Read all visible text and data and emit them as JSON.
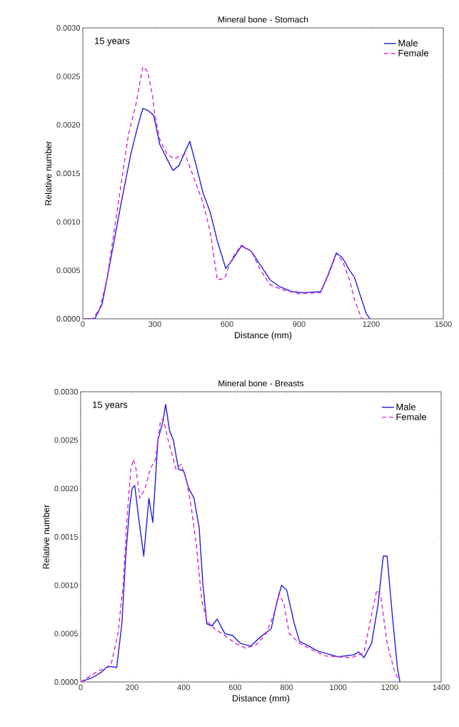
{
  "chart_data": [
    {
      "type": "line",
      "title": "Mineral bone - Stomach",
      "xlabel": "Distance (mm)",
      "ylabel": "Relative number",
      "annotations": [
        "15 years"
      ],
      "legend": "top right",
      "xlim": [
        0,
        1500
      ],
      "xticks": [
        0,
        300,
        600,
        900,
        1200,
        1500
      ],
      "ylim": [
        0,
        0.003
      ],
      "yticks": [
        {
          "value": 0,
          "label": "0.0000"
        },
        {
          "value": 0.0005,
          "label": "0.0005"
        },
        {
          "value": 0.001,
          "label": "0.0010"
        },
        {
          "value": 0.0015,
          "label": "0.0015"
        },
        {
          "value": 0.002,
          "label": "0.0020"
        },
        {
          "value": 0.0025,
          "label": "0.0025"
        },
        {
          "value": 0.003,
          "label": "0.0030"
        }
      ],
      "series": [
        {
          "name": "Male",
          "color": "#1f1fdd",
          "line_style": "solid",
          "x": [
            0,
            30,
            50,
            80,
            100,
            130,
            160,
            200,
            230,
            250,
            270,
            295,
            320,
            350,
            375,
            400,
            425,
            445,
            470,
            500,
            530,
            560,
            595,
            620,
            660,
            700,
            740,
            780,
            820,
            870,
            920,
            990,
            1020,
            1055,
            1080,
            1110,
            1130,
            1160,
            1180,
            1195
          ],
          "values": [
            0,
            0,
            0,
            0.00015,
            0.0004,
            0.0008,
            0.0012,
            0.0017,
            0.002,
            0.00217,
            0.00215,
            0.0021,
            0.0018,
            0.00165,
            0.00153,
            0.00158,
            0.00172,
            0.00183,
            0.0016,
            0.0013,
            0.0011,
            0.0008,
            0.00052,
            0.0006,
            0.00075,
            0.0007,
            0.00055,
            0.0004,
            0.00033,
            0.00028,
            0.00027,
            0.00028,
            0.00045,
            0.00068,
            0.00063,
            0.0005,
            0.00043,
            0.0002,
            5e-05,
            0
          ]
        },
        {
          "name": "Female",
          "color": "#d42ad4",
          "line_style": "dashed",
          "x": [
            0,
            40,
            70,
            100,
            130,
            160,
            190,
            220,
            250,
            270,
            290,
            300,
            320,
            350,
            380,
            405,
            425,
            440,
            470,
            500,
            530,
            560,
            590,
            620,
            660,
            700,
            740,
            780,
            830,
            900,
            990,
            1030,
            1055,
            1080,
            1110,
            1130,
            1160,
            1180
          ],
          "values": [
            0,
            0,
            0.0001,
            0.0004,
            0.0009,
            0.0014,
            0.0019,
            0.0022,
            0.0026,
            0.00255,
            0.0023,
            0.0021,
            0.00185,
            0.0017,
            0.00165,
            0.00168,
            0.0017,
            0.0016,
            0.0014,
            0.0012,
            0.0009,
            0.0004,
            0.00042,
            0.00062,
            0.00076,
            0.0007,
            0.0005,
            0.00035,
            0.0003,
            0.00026,
            0.00027,
            0.0005,
            0.00067,
            0.0006,
            0.0004,
            0.0002,
            0,
            0
          ]
        }
      ]
    },
    {
      "type": "line",
      "title": "Mineral bone - Breasts",
      "xlabel": "Distance (mm)",
      "ylabel": "Relative number",
      "annotations": [
        "15 years"
      ],
      "legend": "top right",
      "xlim": [
        0,
        1400
      ],
      "xticks": [
        0,
        200,
        400,
        600,
        800,
        1000,
        1200,
        1400
      ],
      "ylim": [
        0,
        0.003
      ],
      "yticks": [
        {
          "value": 0,
          "label": "0.0000"
        },
        {
          "value": 0.0005,
          "label": "0.0005"
        },
        {
          "value": 0.001,
          "label": "0.0010"
        },
        {
          "value": 0.0015,
          "label": "0.0015"
        },
        {
          "value": 0.002,
          "label": "0.0020"
        },
        {
          "value": 0.0025,
          "label": "0.0025"
        },
        {
          "value": 0.003,
          "label": "0.0030"
        }
      ],
      "series": [
        {
          "name": "Male",
          "color": "#1f1fdd",
          "line_style": "solid",
          "x": [
            0,
            50,
            80,
            100,
            115,
            140,
            160,
            175,
            190,
            200,
            210,
            225,
            245,
            265,
            280,
            300,
            320,
            330,
            345,
            360,
            380,
            400,
            420,
            440,
            460,
            475,
            490,
            510,
            530,
            560,
            590,
            620,
            660,
            700,
            740,
            760,
            780,
            800,
            830,
            850,
            880,
            920,
            1000,
            1060,
            1080,
            1100,
            1130,
            1155,
            1175,
            1190,
            1210,
            1230,
            1240
          ],
          "values": [
            0,
            5e-05,
            0.0001,
            0.00015,
            0.00016,
            0.00015,
            0.0006,
            0.0013,
            0.0018,
            0.002,
            0.00203,
            0.0017,
            0.0013,
            0.0019,
            0.00165,
            0.0025,
            0.0027,
            0.00287,
            0.0026,
            0.0025,
            0.0022,
            0.00218,
            0.002,
            0.0019,
            0.0016,
            0.001,
            0.0006,
            0.00058,
            0.00065,
            0.0005,
            0.00048,
            0.0004,
            0.00037,
            0.00047,
            0.00055,
            0.0008,
            0.001,
            0.00095,
            0.0006,
            0.00042,
            0.00038,
            0.00032,
            0.00026,
            0.00028,
            0.00031,
            0.00025,
            0.0004,
            0.0008,
            0.0013,
            0.0013,
            0.0007,
            0.00015,
            0
          ]
        },
        {
          "name": "Female",
          "color": "#d42ad4",
          "line_style": "dashed",
          "x": [
            0,
            60,
            100,
            120,
            145,
            165,
            180,
            195,
            205,
            215,
            230,
            250,
            270,
            290,
            310,
            320,
            340,
            370,
            390,
            410,
            430,
            450,
            470,
            490,
            520,
            560,
            600,
            640,
            680,
            720,
            750,
            770,
            790,
            810,
            850,
            900,
            950,
            1050,
            1100,
            1130,
            1150,
            1165,
            1190,
            1220,
            1240
          ],
          "values": [
            0,
            0.0001,
            0.00015,
            0.0002,
            0.0005,
            0.001,
            0.0017,
            0.0022,
            0.0023,
            0.0022,
            0.0019,
            0.002,
            0.0022,
            0.0023,
            0.0027,
            0.00272,
            0.0025,
            0.0022,
            0.00225,
            0.0021,
            0.0018,
            0.0014,
            0.00085,
            0.00063,
            0.00055,
            0.00048,
            0.0004,
            0.00035,
            0.00038,
            0.0005,
            0.0007,
            0.00092,
            0.0008,
            0.0005,
            0.0004,
            0.00033,
            0.00027,
            0.00025,
            0.0003,
            0.0007,
            0.00095,
            0.0009,
            0.0004,
            0.0001,
            0
          ]
        }
      ]
    }
  ]
}
